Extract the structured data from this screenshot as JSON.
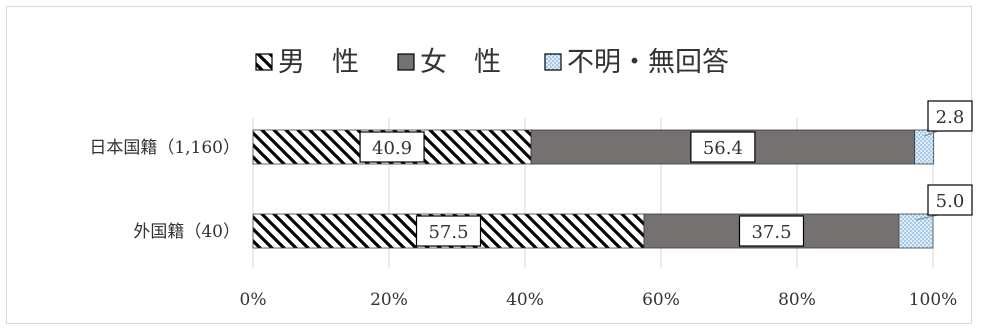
{
  "chart_data": {
    "type": "bar",
    "orientation": "horizontal",
    "stacked": true,
    "percent": true,
    "categories": [
      "日本国籍（1,160）",
      "外国籍（40）"
    ],
    "series": [
      {
        "name": "男　性",
        "values": [
          40.9,
          57.5
        ],
        "labels": [
          "40.9",
          "57.5"
        ],
        "pattern": "diagonal-hatch",
        "color": "#000000"
      },
      {
        "name": "女　性",
        "values": [
          56.4,
          37.5
        ],
        "labels": [
          "56.4",
          "37.5"
        ],
        "pattern": "solid",
        "color": "#767171"
      },
      {
        "name": "不明・無回答",
        "values": [
          2.8,
          5.0
        ],
        "labels": [
          "2.8",
          "5.0"
        ],
        "pattern": "dots",
        "color": "#bdd7ee"
      }
    ],
    "xlim": [
      0,
      100
    ],
    "xticks": [
      "0%",
      "20%",
      "40%",
      "60%",
      "80%",
      "100%"
    ],
    "grid": "vertical",
    "legend": "top"
  }
}
